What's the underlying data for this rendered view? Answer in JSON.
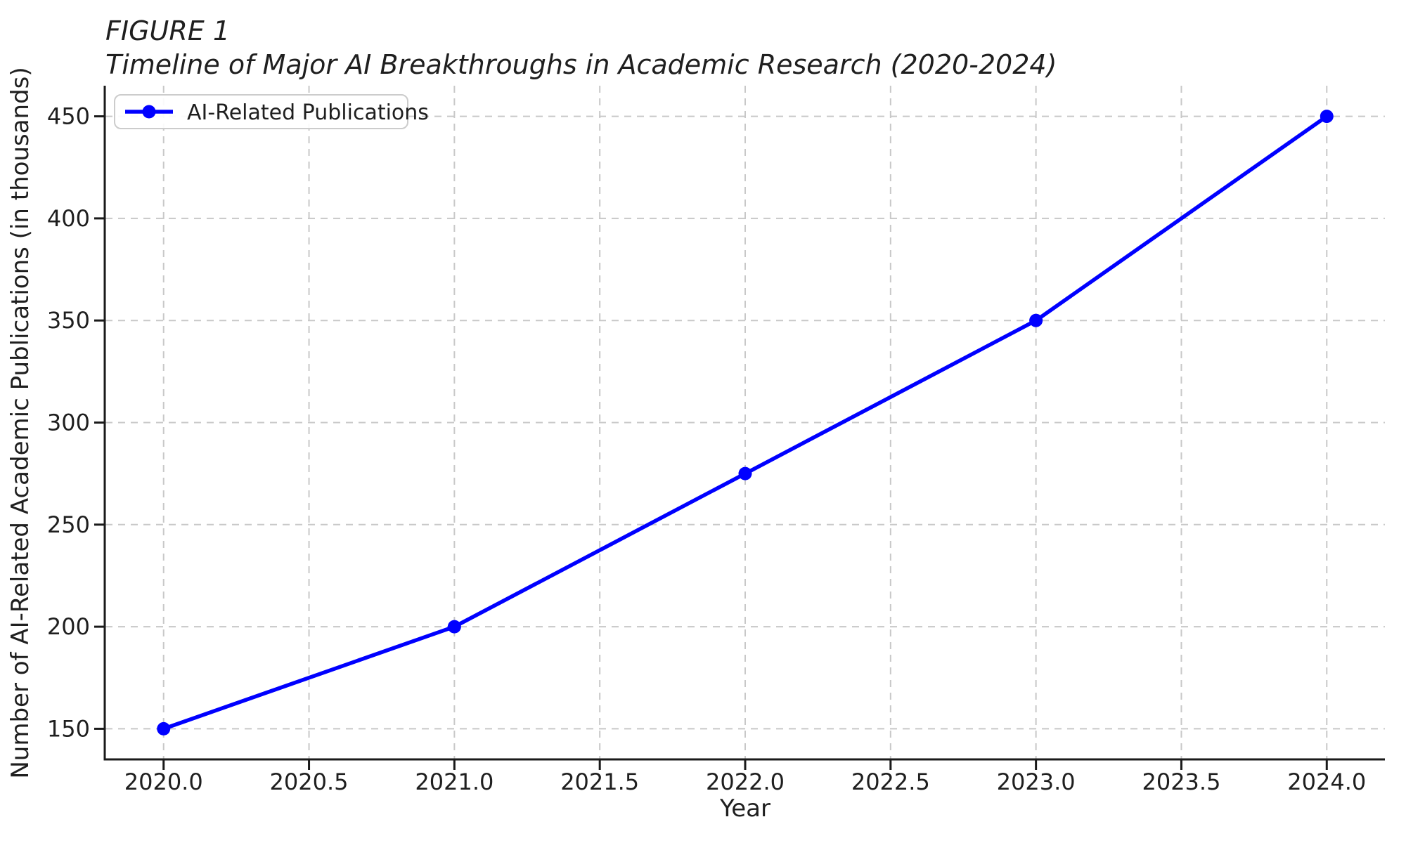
{
  "chart_data": {
    "type": "line",
    "title_lines": [
      "FIGURE 1",
      "Timeline of Major AI Breakthroughs in Academic Research (2020-2024)"
    ],
    "xlabel": "Year",
    "ylabel": "Number of AI-Related Academic Publications (in thousands)",
    "x_ticks": [
      "2020.0",
      "2020.5",
      "2021.0",
      "2021.5",
      "2022.0",
      "2022.5",
      "2023.0",
      "2023.5",
      "2024.0"
    ],
    "y_ticks": [
      "150",
      "200",
      "250",
      "300",
      "350",
      "400",
      "450"
    ],
    "xlim": [
      2019.8,
      2024.2
    ],
    "ylim": [
      135,
      465
    ],
    "grid": "dashed",
    "legend": {
      "position": "upper-left",
      "entries": [
        {
          "label": "AI-Related Publications",
          "color": "#0000ff",
          "marker": "circle"
        }
      ]
    },
    "series": [
      {
        "name": "AI-Related Publications",
        "color": "#0000ff",
        "marker": "circle",
        "x": [
          2020,
          2021,
          2022,
          2023,
          2024
        ],
        "y": [
          150,
          200,
          275,
          350,
          450
        ]
      }
    ],
    "colors": {
      "line": "#0000ff",
      "grid": "#c8c8c8",
      "spine": "#1a1a1a",
      "text": "#1f1f1f",
      "legend_border": "#cccccc",
      "background": "#ffffff"
    }
  }
}
